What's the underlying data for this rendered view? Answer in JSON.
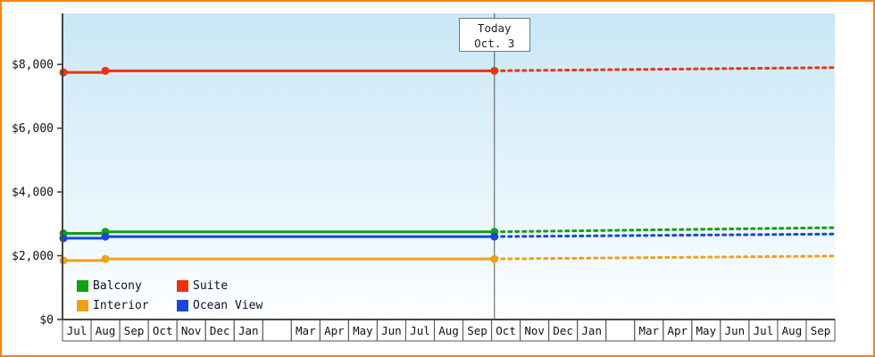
{
  "frame": {
    "border_color": "#ff8200",
    "background": "#ffffff"
  },
  "chart_data": {
    "type": "line",
    "title": "",
    "subtitle": "",
    "today_label": {
      "line1": "Today",
      "line2": "Oct. 3"
    },
    "y_axis": {
      "ticks": [
        {
          "label": "$0",
          "value": 0
        },
        {
          "label": "$2,000",
          "value": 2000
        },
        {
          "label": "$4,000",
          "value": 4000
        },
        {
          "label": "$6,000",
          "value": 6000
        },
        {
          "label": "$8,000",
          "value": 8000
        }
      ],
      "ylim": [
        0,
        9600
      ],
      "grid": false
    },
    "x_axis": {
      "month_cells": [
        "Jul",
        "Aug",
        "Sep",
        "Oct",
        "Nov",
        "Dec",
        "Jan",
        "",
        "Mar",
        "Apr",
        "May",
        "Jun",
        "Jul",
        "Aug",
        "Sep",
        "Oct",
        "Nov",
        "Dec",
        "Jan",
        "",
        "Mar",
        "Apr",
        "May",
        "Jun",
        "Jul",
        "Aug",
        "Sep"
      ],
      "today_cell_index": 15,
      "today_fraction": 0.1
    },
    "series": [
      {
        "name": "Suite",
        "color": "#ee3211",
        "start_value": 7750,
        "aug_value": 7800,
        "today_value": 7800,
        "forecast_end_value": 7900
      },
      {
        "name": "Balcony",
        "color": "#12a012",
        "start_value": 2700,
        "aug_value": 2750,
        "today_value": 2750,
        "forecast_end_value": 2880
      },
      {
        "name": "Ocean View",
        "color": "#1a46dd",
        "start_value": 2550,
        "aug_value": 2600,
        "today_value": 2600,
        "forecast_end_value": 2680
      },
      {
        "name": "Interior",
        "color": "#f0a11a",
        "start_value": 1850,
        "aug_value": 1900,
        "today_value": 1900,
        "forecast_end_value": 1990
      }
    ],
    "legend": [
      {
        "label": "Balcony",
        "color": "#12a012"
      },
      {
        "label": "Suite",
        "color": "#ee3211"
      },
      {
        "label": "Interior",
        "color": "#f0a11a"
      },
      {
        "label": "Ocean View",
        "color": "#1a46dd"
      }
    ],
    "legend_position": "bottom-left-inside"
  }
}
